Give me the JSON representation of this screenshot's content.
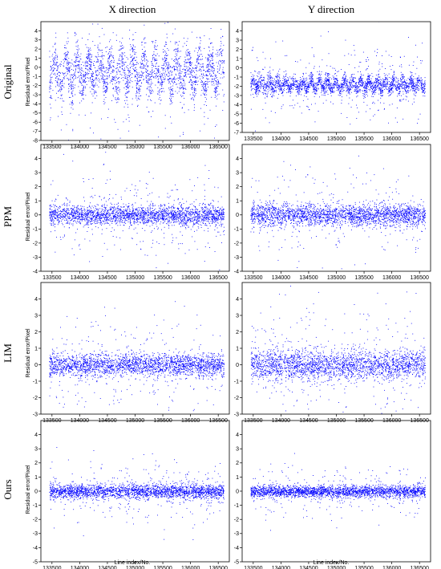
{
  "figure": {
    "col_titles": [
      "X direction",
      "Y direction"
    ],
    "row_labels": [
      "Original",
      "PPM",
      "LIM",
      "Ours"
    ],
    "ylabel": "Residual error/Pixel",
    "xlabel": "Line index/No.",
    "point_color": "#0000ff"
  },
  "chart_data": [
    {
      "type": "scatter",
      "method": "Original",
      "direction": "X direction",
      "xlim": [
        133300,
        136700
      ],
      "ylim": [
        -8,
        5
      ],
      "xticks": [
        133500,
        134000,
        134500,
        135000,
        135500,
        136000,
        136500
      ],
      "yticks": [
        4,
        3,
        2,
        1,
        0,
        -1,
        -2,
        -3,
        -4,
        -5,
        -6,
        -7,
        -8
      ],
      "center": -0.5,
      "spread": 1.2,
      "oscillation_amplitude": 1.5,
      "oscillation_period": 200,
      "color": "#0000ff"
    },
    {
      "type": "scatter",
      "method": "Original",
      "direction": "Y direction",
      "xlim": [
        133300,
        136700
      ],
      "ylim": [
        -7,
        5
      ],
      "xticks": [
        133500,
        134000,
        134500,
        135000,
        135500,
        136000,
        136500
      ],
      "yticks": [
        4,
        3,
        2,
        1,
        0,
        -1,
        -2,
        -3,
        -4,
        -5,
        -6,
        -7
      ],
      "center": -1.8,
      "spread": 0.45,
      "oscillation_amplitude": 0.4,
      "oscillation_period": 150,
      "color": "#0000ff"
    },
    {
      "type": "scatter",
      "method": "PPM",
      "direction": "X direction",
      "xlim": [
        133300,
        136700
      ],
      "ylim": [
        -4,
        5
      ],
      "xticks": [
        133500,
        134000,
        134500,
        135000,
        135500,
        136000,
        136500
      ],
      "yticks": [
        4,
        3,
        2,
        1,
        0,
        -1,
        -2,
        -3,
        -4
      ],
      "center": 0,
      "spread": 0.35,
      "oscillation_amplitude": 0,
      "oscillation_period": 0,
      "color": "#0000ff"
    },
    {
      "type": "scatter",
      "method": "PPM",
      "direction": "Y direction",
      "xlim": [
        133300,
        136700
      ],
      "ylim": [
        -4,
        5
      ],
      "xticks": [
        133500,
        134000,
        134500,
        135000,
        135500,
        136000,
        136500
      ],
      "yticks": [
        4,
        3,
        2,
        1,
        0,
        -1,
        -2,
        -3,
        -4
      ],
      "center": 0,
      "spread": 0.4,
      "oscillation_amplitude": 0,
      "oscillation_period": 0,
      "color": "#0000ff"
    },
    {
      "type": "scatter",
      "method": "LIM",
      "direction": "X direction",
      "xlim": [
        133300,
        136700
      ],
      "ylim": [
        -3,
        5
      ],
      "xticks": [
        133500,
        134000,
        134500,
        135000,
        135500,
        136000,
        136500
      ],
      "yticks": [
        4,
        3,
        2,
        1,
        0,
        -1,
        -2,
        -3
      ],
      "center": 0,
      "spread": 0.35,
      "oscillation_amplitude": 0,
      "oscillation_period": 0,
      "color": "#0000ff"
    },
    {
      "type": "scatter",
      "method": "LIM",
      "direction": "Y direction",
      "xlim": [
        133300,
        136700
      ],
      "ylim": [
        -3,
        5
      ],
      "xticks": [
        133500,
        134000,
        134500,
        135000,
        135500,
        136000,
        136500
      ],
      "yticks": [
        4,
        3,
        2,
        1,
        0,
        -1,
        -2,
        -3
      ],
      "center": 0,
      "spread": 0.45,
      "oscillation_amplitude": 0,
      "oscillation_period": 0,
      "color": "#0000ff"
    },
    {
      "type": "scatter",
      "method": "Ours",
      "direction": "X direction",
      "xlim": [
        133300,
        136700
      ],
      "ylim": [
        -5,
        5
      ],
      "xticks": [
        133500,
        134000,
        134500,
        135000,
        135500,
        136000,
        136500
      ],
      "yticks": [
        4,
        3,
        2,
        1,
        0,
        -1,
        -2,
        -3,
        -4,
        -5
      ],
      "center": 0,
      "spread": 0.25,
      "oscillation_amplitude": 0,
      "oscillation_period": 0,
      "color": "#0000ff"
    },
    {
      "type": "scatter",
      "method": "Ours",
      "direction": "Y direction",
      "xlim": [
        133300,
        136700
      ],
      "ylim": [
        -5,
        5
      ],
      "xticks": [
        133500,
        134000,
        134500,
        135000,
        135500,
        136000,
        136500
      ],
      "yticks": [
        4,
        3,
        2,
        1,
        0,
        -1,
        -2,
        -3,
        -4,
        -5
      ],
      "center": 0,
      "spread": 0.2,
      "oscillation_amplitude": 0,
      "oscillation_period": 0,
      "color": "#0000ff"
    }
  ]
}
